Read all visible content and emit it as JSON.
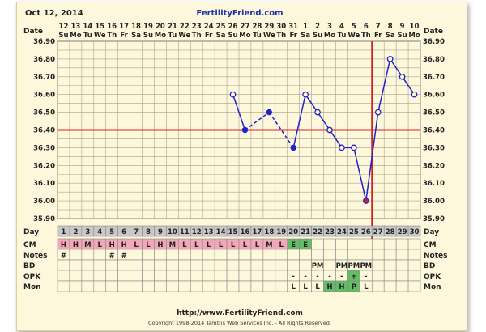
{
  "header": {
    "date": "Oct 12, 2014",
    "site": "FertilityFriend.com"
  },
  "footer": {
    "url": "http://www.FertilityFriend.com",
    "copyright": "Copyright 1998-2014 Tamtris Web Services Inc. - All Rights Reserved."
  },
  "chart_data": {
    "type": "line",
    "dates": [
      "12",
      "13",
      "14",
      "15",
      "16",
      "17",
      "18",
      "19",
      "20",
      "21",
      "22",
      "23",
      "24",
      "25",
      "26",
      "27",
      "28",
      "29",
      "30",
      "31",
      "1",
      "2",
      "3",
      "4",
      "5",
      "6",
      "7",
      "8",
      "9",
      "10"
    ],
    "weekdays": [
      "Su",
      "Mo",
      "Tu",
      "We",
      "Th",
      "Fr",
      "Sa",
      "Su",
      "Mo",
      "Tu",
      "We",
      "Th",
      "Fr",
      "Sa",
      "Su",
      "Mo",
      "Tu",
      "We",
      "Th",
      "Fr",
      "Sa",
      "Su",
      "Mo",
      "Tu",
      "We",
      "Th",
      "Fr",
      "Sa",
      "Su",
      "Mo"
    ],
    "cycle_days": [
      1,
      2,
      3,
      4,
      5,
      6,
      7,
      8,
      9,
      10,
      11,
      12,
      13,
      14,
      15,
      16,
      17,
      18,
      19,
      20,
      21,
      22,
      23,
      24,
      25,
      26,
      27,
      28,
      29,
      30
    ],
    "temps": [
      null,
      null,
      null,
      null,
      null,
      null,
      null,
      null,
      null,
      null,
      null,
      null,
      null,
      null,
      36.6,
      36.4,
      null,
      36.5,
      null,
      36.3,
      36.6,
      36.5,
      36.4,
      36.3,
      36.3,
      36.0,
      36.5,
      36.8,
      36.7,
      36.6
    ],
    "dashed_segments": [
      [
        16,
        18
      ],
      [
        18,
        20
      ]
    ],
    "open_markers": [
      15,
      21,
      22,
      23,
      24,
      25,
      26,
      27,
      28,
      29,
      30
    ],
    "ovulation_day": 26,
    "coverline": 36.4,
    "ylim": [
      35.9,
      36.9
    ],
    "y_ticks": [
      "35.90",
      "36.00",
      "36.10",
      "36.20",
      "36.30",
      "36.40",
      "36.50",
      "36.60",
      "36.70",
      "36.80",
      "36.90"
    ],
    "row_labels": {
      "date": "Date",
      "day": "Day",
      "cm": "CM",
      "notes": "Notes",
      "bd": "BD",
      "opk": "OPK",
      "mon": "Mon"
    },
    "cm": [
      "H",
      "H",
      "M",
      "L",
      "H",
      "H",
      "L",
      "L",
      "H",
      "M",
      "L",
      "L",
      "L",
      "L",
      "L",
      "L",
      "L",
      "M",
      "L",
      "E",
      "E",
      "",
      "",
      "",
      "",
      "",
      "",
      "",
      "",
      ""
    ],
    "notes": [
      "#",
      "",
      "",
      "",
      "#",
      "#",
      "",
      "",
      "",
      "",
      "",
      "",
      "",
      "",
      "",
      "",
      "",
      "",
      "",
      "",
      "",
      "",
      "",
      "",
      "",
      "",
      "",
      "",
      "",
      ""
    ],
    "bd": [
      "",
      "",
      "",
      "",
      "",
      "",
      "",
      "",
      "",
      "",
      "",
      "",
      "",
      "",
      "",
      "",
      "",
      "",
      "",
      "",
      "",
      "PM",
      "",
      "PM",
      "PM",
      "PM",
      "",
      "",
      "",
      ""
    ],
    "opk": [
      "",
      "",
      "",
      "",
      "",
      "",
      "",
      "",
      "",
      "",
      "",
      "",
      "",
      "",
      "",
      "",
      "",
      "",
      "",
      "-",
      "-",
      "-",
      "-",
      "-",
      "+",
      "-",
      "",
      "",
      "",
      ""
    ],
    "mon": [
      "",
      "",
      "",
      "",
      "",
      "",
      "",
      "",
      "",
      "",
      "",
      "",
      "",
      "",
      "",
      "",
      "",
      "",
      "",
      "L",
      "L",
      "L",
      "H",
      "H",
      "P",
      "L",
      "",
      "",
      "",
      ""
    ],
    "colors": {
      "line": "#2222cc",
      "coverline": "#dd2222",
      "ovulation_line": "#cc2222",
      "cm_fill": "#f2a8b8",
      "egg_fill": "#66bb66",
      "mon_high": "#66bb66",
      "day_fill": "#c8c8c8"
    }
  }
}
